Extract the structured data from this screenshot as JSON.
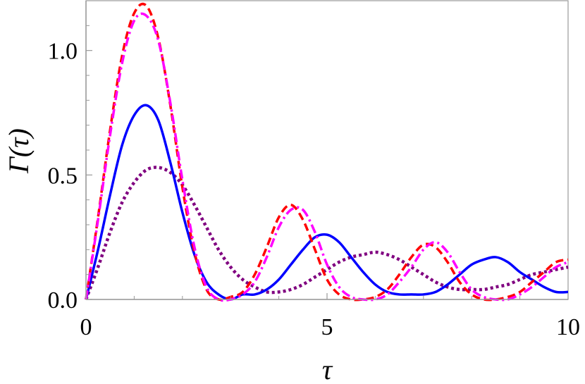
{
  "chart_data": {
    "type": "line",
    "xlabel": "τ",
    "ylabel": "Γ(τ)",
    "xlim": [
      0,
      10
    ],
    "ylim": [
      0,
      1.2
    ],
    "xticks": [
      0,
      5,
      10
    ],
    "xtick_labels": [
      "0",
      "5",
      "10"
    ],
    "yticks": [
      0,
      0.5,
      1.0
    ],
    "ytick_labels": [
      "0.0",
      "0.5",
      "1.0"
    ],
    "grid": false,
    "legend": "none",
    "x": [
      0,
      0.25,
      0.5,
      0.75,
      1,
      1.25,
      1.5,
      1.75,
      2,
      2.25,
      2.5,
      2.75,
      3,
      3.25,
      3.5,
      3.75,
      4,
      4.25,
      4.5,
      4.75,
      5,
      5.25,
      5.5,
      5.75,
      6,
      6.25,
      6.5,
      6.75,
      7,
      7.25,
      7.5,
      7.75,
      8,
      8.25,
      8.5,
      8.75,
      9,
      9.25,
      9.5,
      9.75,
      10
    ],
    "series": [
      {
        "color": "#ff0000",
        "dash": "dashed",
        "values": [
          0,
          0.33,
          0.68,
          0.98,
          1.15,
          1.18,
          1.05,
          0.78,
          0.45,
          0.19,
          0.04,
          0.0,
          0.01,
          0.03,
          0.1,
          0.21,
          0.33,
          0.38,
          0.32,
          0.2,
          0.08,
          0.02,
          0.0,
          0.0,
          0.01,
          0.04,
          0.1,
          0.17,
          0.22,
          0.21,
          0.15,
          0.07,
          0.02,
          0.0,
          0.0,
          0.01,
          0.03,
          0.07,
          0.11,
          0.15,
          0.16
        ]
      },
      {
        "color": "#ff00ff",
        "dash": "dashdot",
        "values": [
          0,
          0.32,
          0.66,
          0.95,
          1.12,
          1.14,
          1.04,
          0.79,
          0.48,
          0.21,
          0.05,
          0.0,
          0.0,
          0.02,
          0.07,
          0.17,
          0.29,
          0.36,
          0.36,
          0.27,
          0.14,
          0.05,
          0.01,
          0.0,
          0.0,
          0.02,
          0.07,
          0.13,
          0.2,
          0.23,
          0.19,
          0.11,
          0.04,
          0.01,
          0.0,
          0.0,
          0.02,
          0.05,
          0.09,
          0.13,
          0.15
        ]
      },
      {
        "color": "#0000ff",
        "dash": "solid",
        "values": [
          0,
          0.2,
          0.42,
          0.62,
          0.74,
          0.78,
          0.72,
          0.55,
          0.35,
          0.18,
          0.07,
          0.02,
          0.0,
          0.02,
          0.02,
          0.04,
          0.08,
          0.14,
          0.2,
          0.25,
          0.26,
          0.23,
          0.17,
          0.11,
          0.06,
          0.03,
          0.02,
          0.02,
          0.02,
          0.03,
          0.06,
          0.1,
          0.14,
          0.16,
          0.17,
          0.15,
          0.11,
          0.08,
          0.05,
          0.03,
          0.03
        ]
      },
      {
        "color": "#800080",
        "dash": "dotted",
        "values": [
          0,
          0.13,
          0.27,
          0.39,
          0.47,
          0.52,
          0.53,
          0.51,
          0.46,
          0.38,
          0.29,
          0.2,
          0.13,
          0.08,
          0.05,
          0.03,
          0.03,
          0.04,
          0.06,
          0.09,
          0.12,
          0.15,
          0.17,
          0.18,
          0.19,
          0.18,
          0.16,
          0.13,
          0.1,
          0.07,
          0.05,
          0.04,
          0.04,
          0.04,
          0.05,
          0.06,
          0.08,
          0.1,
          0.11,
          0.12,
          0.13
        ]
      }
    ]
  }
}
